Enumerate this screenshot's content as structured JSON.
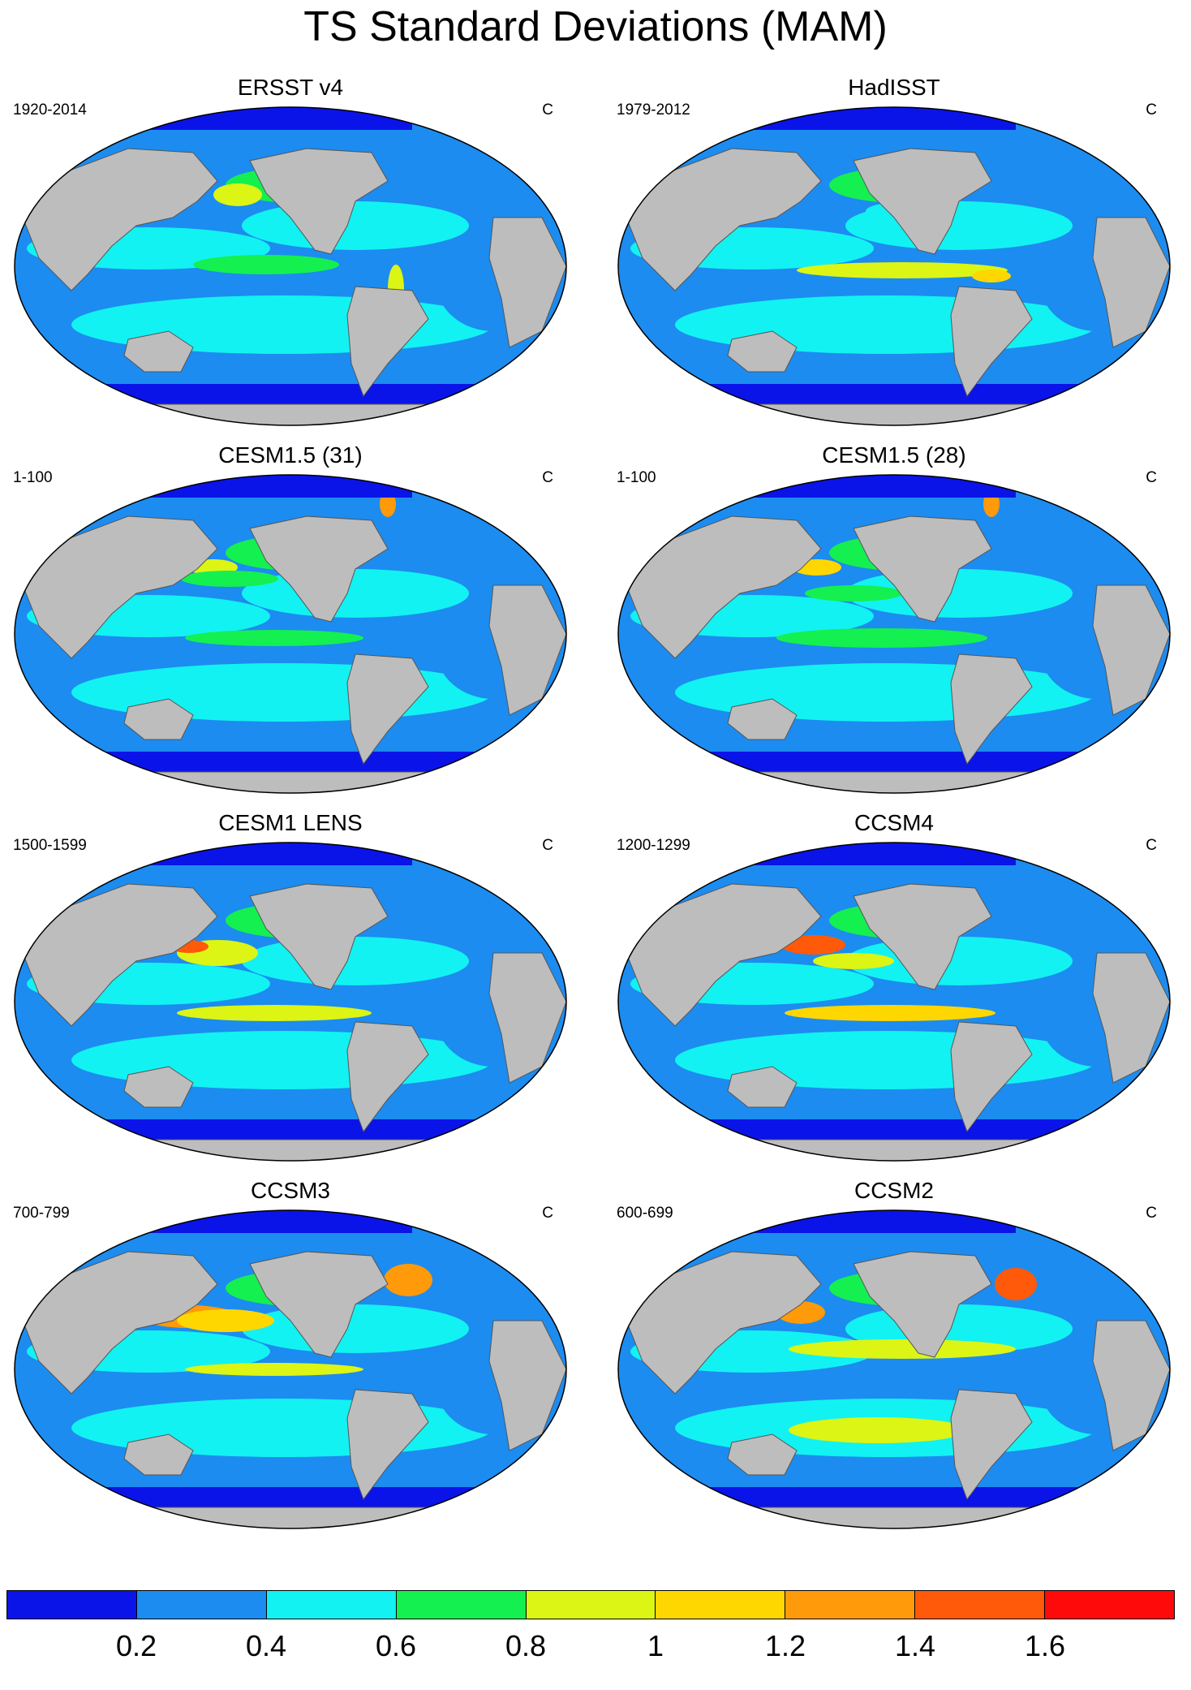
{
  "title": "TS Standard Deviations (MAM)",
  "colors": {
    "land": "#bdbdbd",
    "bins": [
      "#0a14e8",
      "#1c8cf0",
      "#12f2f2",
      "#14f050",
      "#dcf514",
      "#ffd700",
      "#ff9a0a",
      "#ff5a0a",
      "#ff0a0a"
    ]
  },
  "panels": [
    {
      "title": "ERSST v4",
      "range": "1920-2014",
      "units": "C"
    },
    {
      "title": "HadISST",
      "range": "1979-2012",
      "units": "C"
    },
    {
      "title": "CESM1.5 (31)",
      "range": "1-100",
      "units": "C"
    },
    {
      "title": "CESM1.5 (28)",
      "range": "1-100",
      "units": "C"
    },
    {
      "title": "CESM1 LENS",
      "range": "1500-1599",
      "units": "C"
    },
    {
      "title": "CCSM4",
      "range": "1200-1299",
      "units": "C"
    },
    {
      "title": "CCSM3",
      "range": "700-799",
      "units": "C"
    },
    {
      "title": "CCSM2",
      "range": "600-699",
      "units": "C"
    }
  ],
  "colorbar": {
    "labels": [
      "0.2",
      "0.4",
      "0.6",
      "0.8",
      "1",
      "1.2",
      "1.4",
      "1.6"
    ]
  }
}
